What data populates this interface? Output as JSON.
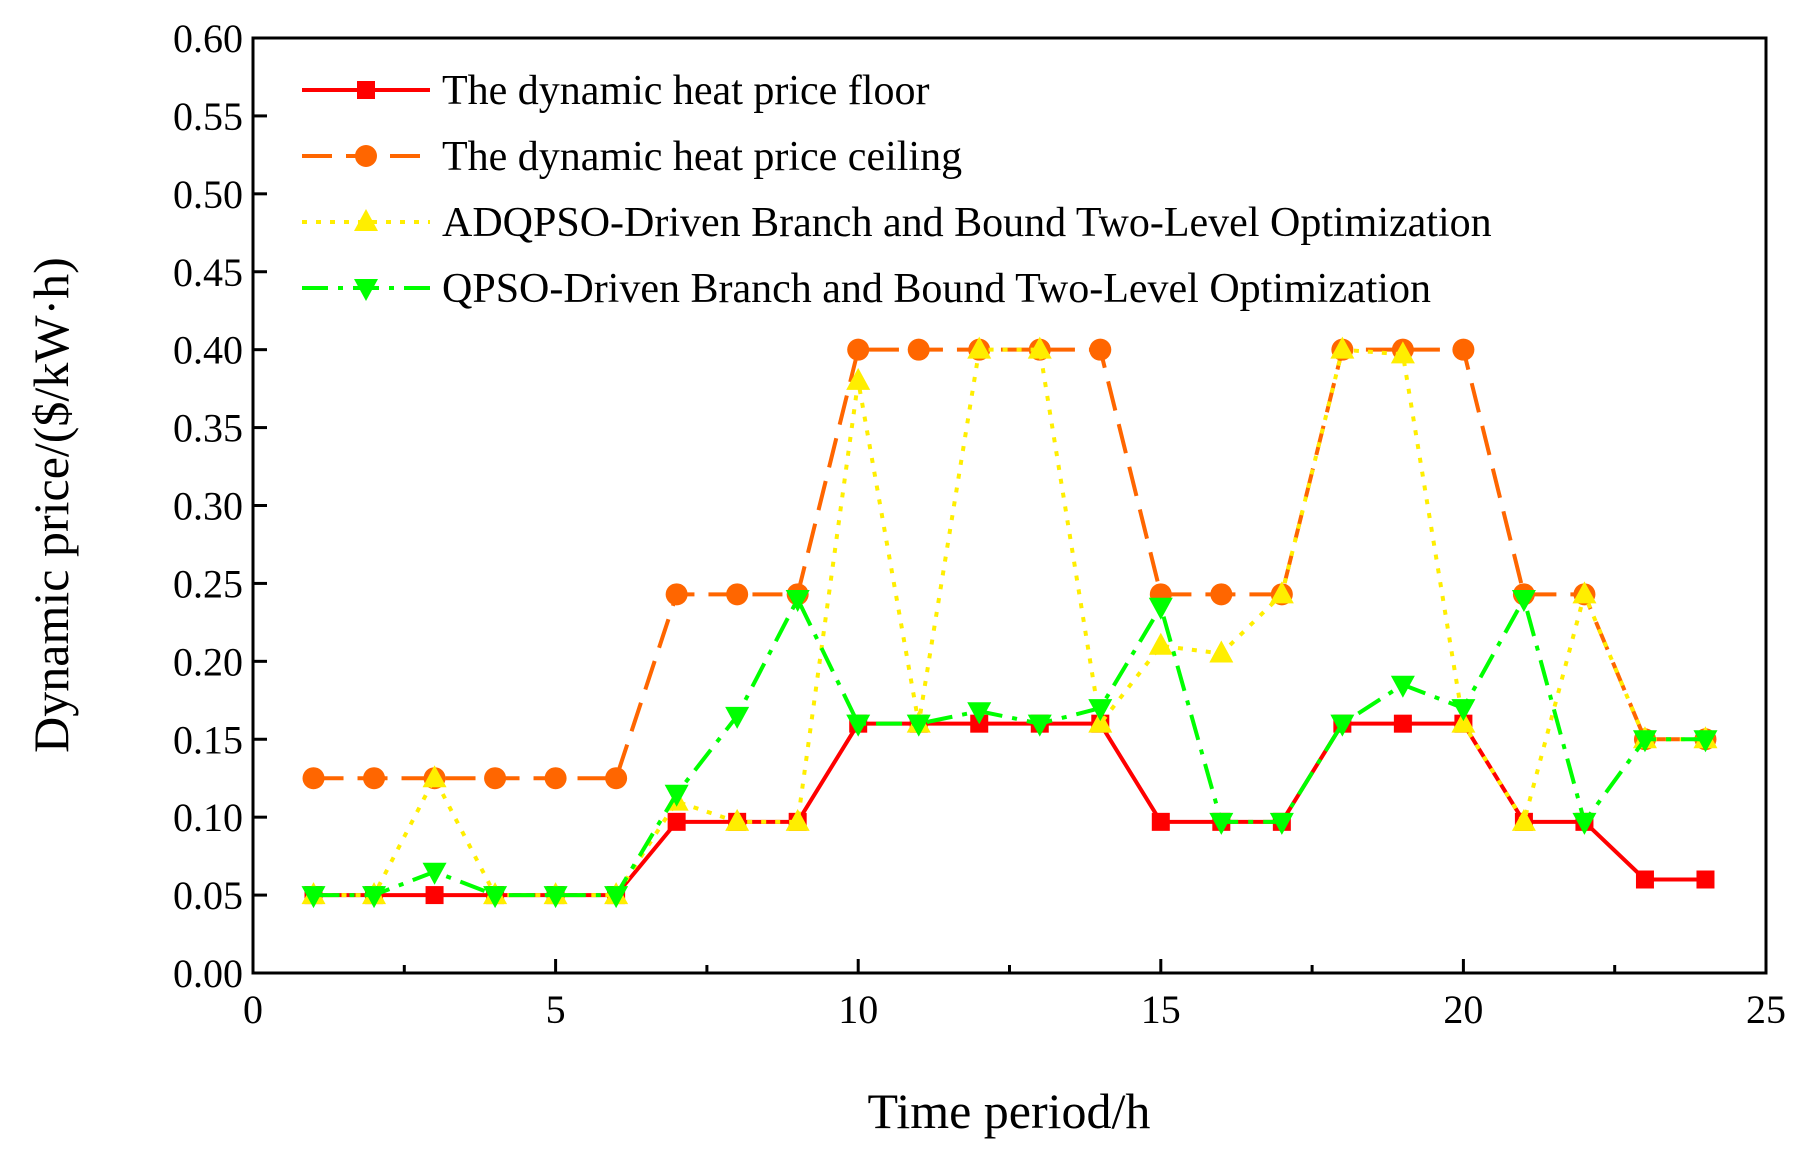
{
  "chart_data": {
    "type": "line",
    "title": "",
    "xlabel": "Time period/h",
    "ylabel": "Dynamic price/($/kW·h)",
    "xlim": [
      0,
      25
    ],
    "ylim": [
      0,
      0.6
    ],
    "xticks": [
      0,
      5,
      10,
      15,
      20,
      25
    ],
    "xtick_labels": [
      "0",
      "5",
      "10",
      "15",
      "20",
      "25"
    ],
    "yticks": [
      0,
      0.05,
      0.1,
      0.15,
      0.2,
      0.25,
      0.3,
      0.35,
      0.4,
      0.45,
      0.5,
      0.55,
      0.6
    ],
    "ytick_labels": [
      "0.00",
      "0.05",
      "0.10",
      "0.15",
      "0.20",
      "0.25",
      "0.30",
      "0.35",
      "0.40",
      "0.45",
      "0.50",
      "0.55",
      "0.60"
    ],
    "grid": false,
    "legend_position": "top-left",
    "x": [
      1,
      2,
      3,
      4,
      5,
      6,
      7,
      8,
      9,
      10,
      11,
      12,
      13,
      14,
      15,
      16,
      17,
      18,
      19,
      20,
      21,
      22,
      23,
      24
    ],
    "series": [
      {
        "name": "The dynamic heat price floor",
        "color": "#ff0000",
        "line_style": "solid",
        "marker": "square",
        "values": [
          0.05,
          0.05,
          0.05,
          0.05,
          0.05,
          0.05,
          0.097,
          0.097,
          0.097,
          0.16,
          0.16,
          0.16,
          0.16,
          0.16,
          0.097,
          0.097,
          0.097,
          0.16,
          0.16,
          0.16,
          0.097,
          0.097,
          0.06,
          0.06
        ]
      },
      {
        "name": "The dynamic heat price ceiling",
        "color": "#ff6600",
        "line_style": "dash",
        "marker": "circle",
        "values": [
          0.125,
          0.125,
          0.125,
          0.125,
          0.125,
          0.125,
          0.243,
          0.243,
          0.243,
          0.4,
          0.4,
          0.4,
          0.4,
          0.4,
          0.243,
          0.243,
          0.243,
          0.4,
          0.4,
          0.4,
          0.243,
          0.243,
          0.15,
          0.15
        ]
      },
      {
        "name": "ADQPSO-Driven Branch and Bound Two-Level Optimization",
        "color": "#ffee00",
        "line_style": "dot",
        "marker": "triangle-up",
        "values": [
          0.05,
          0.05,
          0.125,
          0.05,
          0.05,
          0.05,
          0.11,
          0.097,
          0.097,
          0.38,
          0.16,
          0.4,
          0.4,
          0.16,
          0.21,
          0.205,
          0.243,
          0.4,
          0.397,
          0.16,
          0.097,
          0.243,
          0.15,
          0.15
        ]
      },
      {
        "name": "QPSO-Driven Branch and Bound Two-Level Optimization",
        "color": "#00ff00",
        "line_style": "dashdot",
        "marker": "triangle-down",
        "values": [
          0.05,
          0.05,
          0.065,
          0.05,
          0.05,
          0.05,
          0.115,
          0.165,
          0.24,
          0.16,
          0.16,
          0.168,
          0.16,
          0.17,
          0.235,
          0.097,
          0.097,
          0.16,
          0.185,
          0.17,
          0.24,
          0.097,
          0.15,
          0.15
        ]
      }
    ]
  }
}
